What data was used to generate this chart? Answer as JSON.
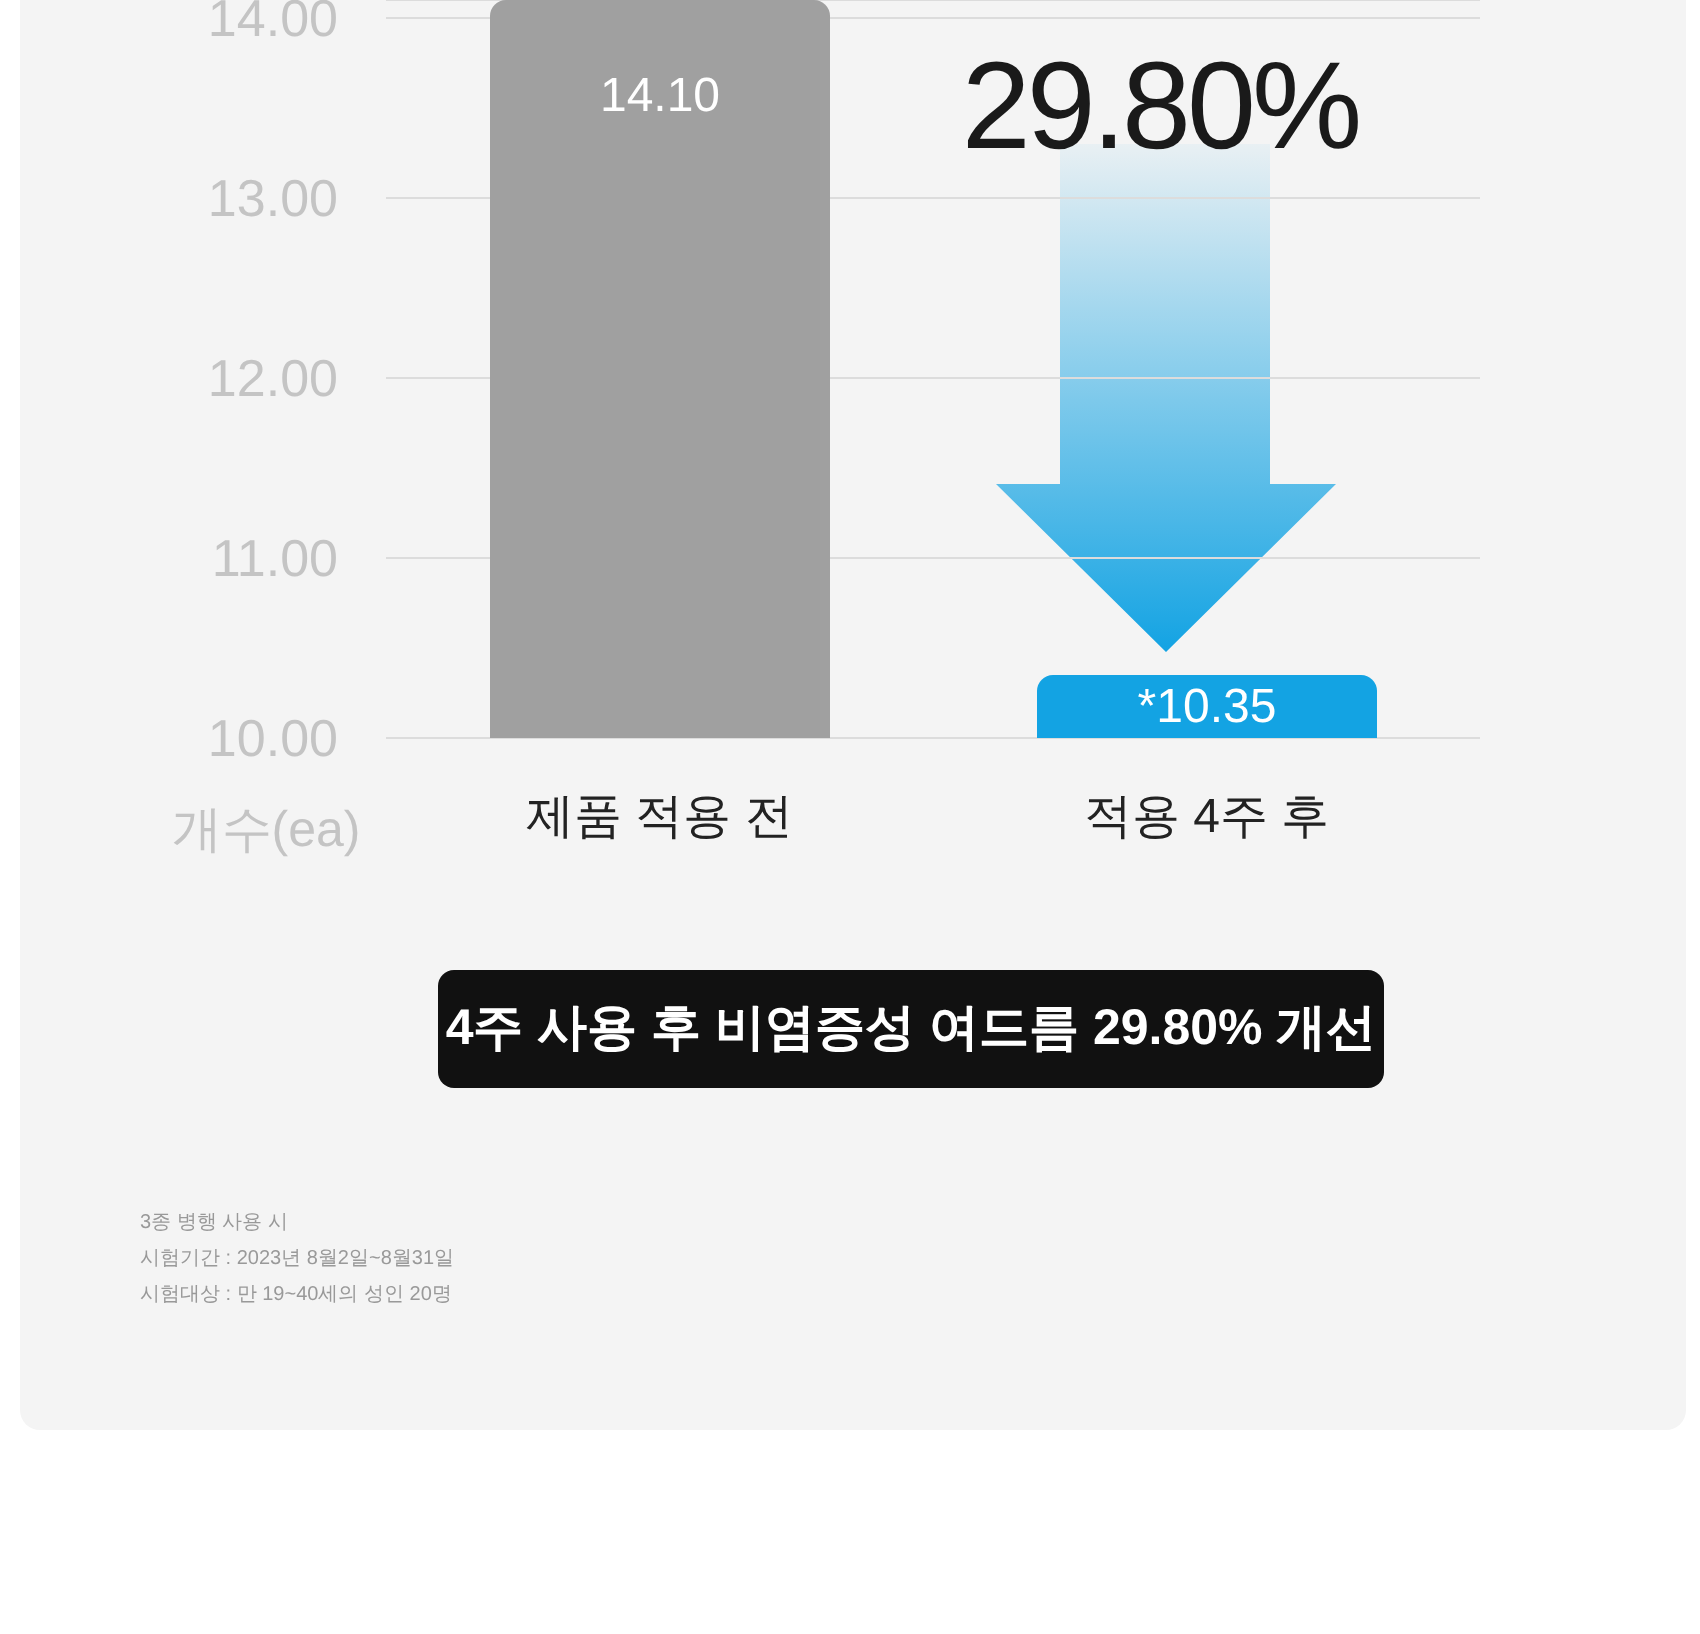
{
  "chart_data": {
    "type": "bar",
    "categories": [
      "제품 적용 전",
      "적용 4주 후"
    ],
    "values": [
      14.1,
      10.35
    ],
    "colors": [
      "#a0a0a0",
      "#13a3e3"
    ],
    "value_labels": [
      "14.10",
      "*10.35"
    ],
    "ylabel": "개수(ea)",
    "ylim": [
      10,
      14.1
    ],
    "yticks": [
      {
        "value": 10,
        "label": "10.00"
      },
      {
        "value": 11,
        "label": "11.00"
      },
      {
        "value": 12,
        "label": "12.00"
      },
      {
        "value": 13,
        "label": "13.00"
      },
      {
        "value": 14,
        "label": "14.00"
      }
    ],
    "grid": "y",
    "annotations": [
      "29.80%",
      "4주 사용 후 비염증성 여드름 29.80% 개선",
      "3종 병행 사용 시",
      "시험기간 : 2023년 8월2일~8월31일",
      "시험대상 : 만 19~40세의 성인 20명"
    ]
  }
}
